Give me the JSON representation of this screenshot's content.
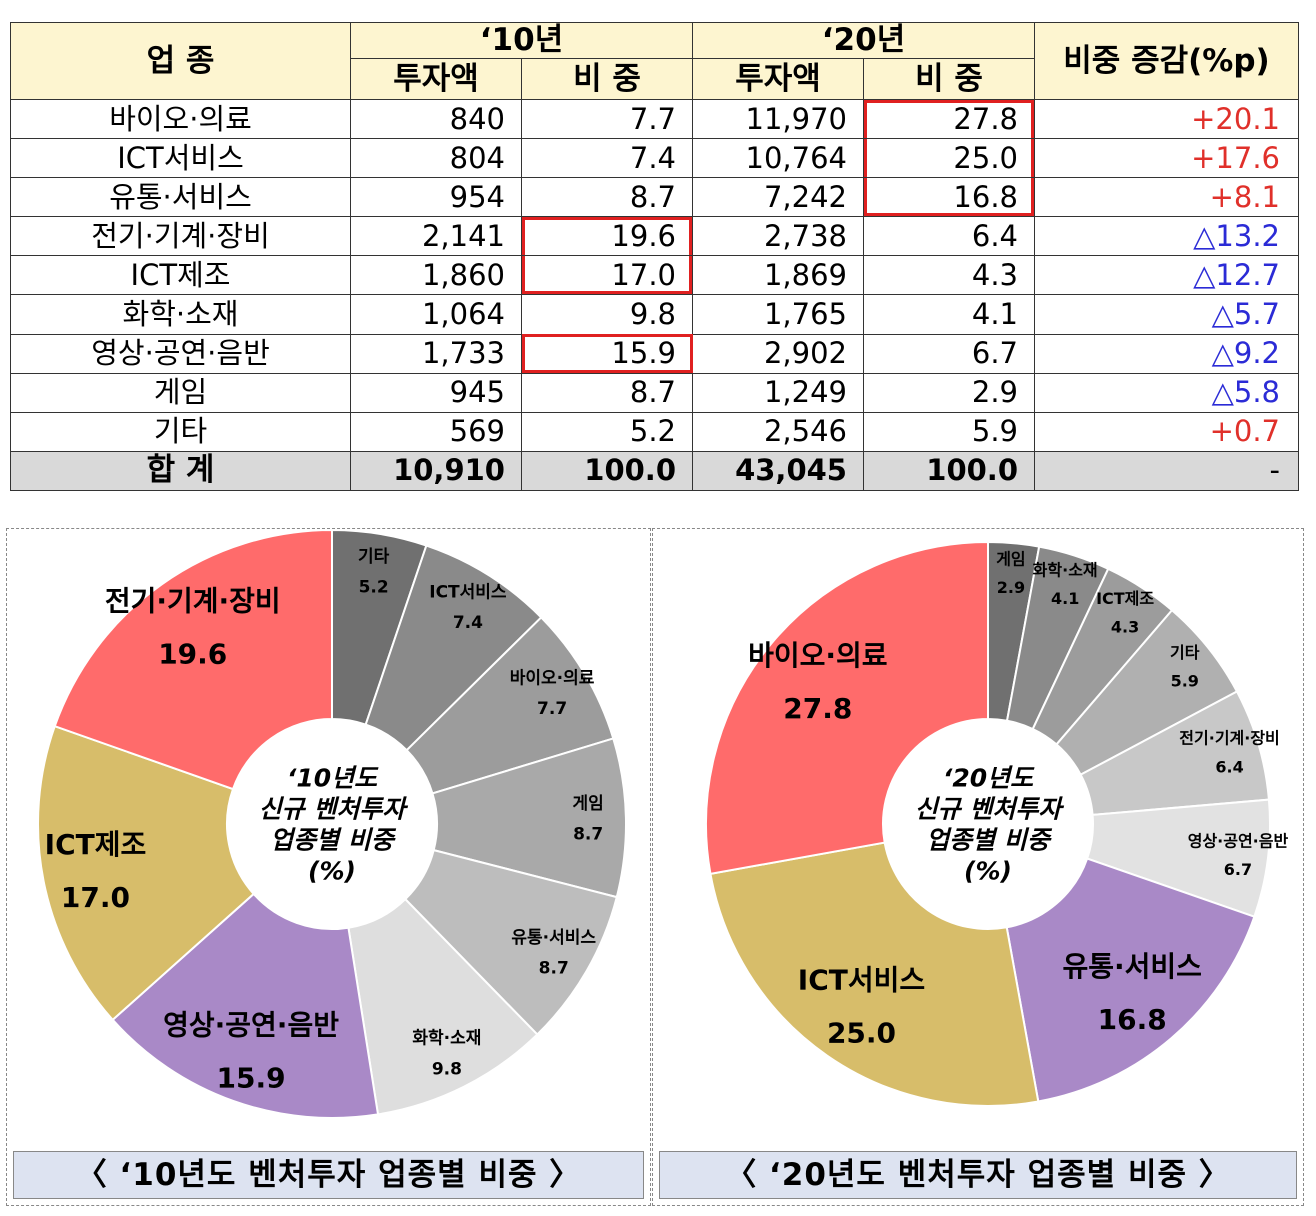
{
  "table": {
    "headers": {
      "industry": "업 종",
      "y2010": "‘10년",
      "y2020": "‘20년",
      "change": "비중 증감(%p)",
      "amount": "투자액",
      "share": "비 중"
    },
    "rows": [
      {
        "name": "바이오·의료",
        "a10": "840",
        "s10": "7.7",
        "a20": "11,970",
        "s20": "27.8",
        "chg": "+20.1"
      },
      {
        "name": "ICT서비스",
        "a10": "804",
        "s10": "7.4",
        "a20": "10,764",
        "s20": "25.0",
        "chg": "+17.6"
      },
      {
        "name": "유통·서비스",
        "a10": "954",
        "s10": "8.7",
        "a20": "7,242",
        "s20": "16.8",
        "chg": "+8.1"
      },
      {
        "name": "전기·기계·장비",
        "a10": "2,141",
        "s10": "19.6",
        "a20": "2,738",
        "s20": "6.4",
        "chg": "△13.2"
      },
      {
        "name": "ICT제조",
        "a10": "1,860",
        "s10": "17.0",
        "a20": "1,869",
        "s20": "4.3",
        "chg": "△12.7"
      },
      {
        "name": "화학·소재",
        "a10": "1,064",
        "s10": "9.8",
        "a20": "1,765",
        "s20": "4.1",
        "chg": "△5.7"
      },
      {
        "name": "영상·공연·음반",
        "a10": "1,733",
        "s10": "15.9",
        "a20": "2,902",
        "s20": "6.7",
        "chg": "△9.2"
      },
      {
        "name": "게임",
        "a10": "945",
        "s10": "8.7",
        "a20": "1,249",
        "s20": "2.9",
        "chg": "△5.8"
      },
      {
        "name": "기타",
        "a10": "569",
        "s10": "5.2",
        "a20": "2,546",
        "s20": "5.9",
        "chg": "+0.7"
      }
    ],
    "total": {
      "name": "합 계",
      "a10": "10,910",
      "s10": "100.0",
      "a20": "43,045",
      "s20": "100.0",
      "chg": "-"
    }
  },
  "colors": {
    "increase": "#e0302a",
    "decrease": "#2b2bd6",
    "highlight_box": "#e02020",
    "header_bg": "#fdf5d0",
    "total_bg": "#d9d9d9",
    "caption_bg": "#dde3f1"
  },
  "chart_data": [
    {
      "type": "pie",
      "center_title": [
        "‘10년도",
        "신규 벤처투자",
        "업종별 비중",
        "(%)"
      ],
      "caption": "〈 ‘10년도  벤처투자  업종별  비중 〉",
      "slices": [
        {
          "label": "기타",
          "value": 5.2,
          "color": "#707070"
        },
        {
          "label": "ICT서비스",
          "value": 7.4,
          "color": "#8a8a8a"
        },
        {
          "label": "바이오·의료",
          "value": 7.7,
          "color": "#9c9c9c"
        },
        {
          "label": "게임",
          "value": 8.7,
          "color": "#a9a9a9"
        },
        {
          "label": "유통·서비스",
          "value": 8.7,
          "color": "#bdbdbd"
        },
        {
          "label": "화학·소재",
          "value": 9.8,
          "color": "#dedede"
        },
        {
          "label": "영상·공연·음반",
          "value": 15.9,
          "color": "#a989c7"
        },
        {
          "label": "ICT제조",
          "value": 17.0,
          "color": "#d7bd6a"
        },
        {
          "label": "전기·기계·장비",
          "value": 19.6,
          "color": "#ff6b6b"
        }
      ]
    },
    {
      "type": "pie",
      "center_title": [
        "‘20년도",
        "신규 벤처투자",
        "업종별 비중",
        "(%)"
      ],
      "caption": "〈 ‘20년도  벤처투자  업종별  비중 〉",
      "slices": [
        {
          "label": "게임",
          "value": 2.9,
          "color": "#707070"
        },
        {
          "label": "화학·소재",
          "value": 4.1,
          "color": "#8a8a8a"
        },
        {
          "label": "ICT제조",
          "value": 4.3,
          "color": "#9c9c9c"
        },
        {
          "label": "기타",
          "value": 5.9,
          "color": "#b0b0b0"
        },
        {
          "label": "전기·기계·장비",
          "value": 6.4,
          "color": "#c8c8c8"
        },
        {
          "label": "영상·공연·음반",
          "value": 6.7,
          "color": "#e2e2e2"
        },
        {
          "label": "유통·서비스",
          "value": 16.8,
          "color": "#a989c7"
        },
        {
          "label": "ICT서비스",
          "value": 25.0,
          "color": "#d7bd6a"
        },
        {
          "label": "바이오·의료",
          "value": 27.8,
          "color": "#ff6b6b"
        }
      ]
    }
  ]
}
